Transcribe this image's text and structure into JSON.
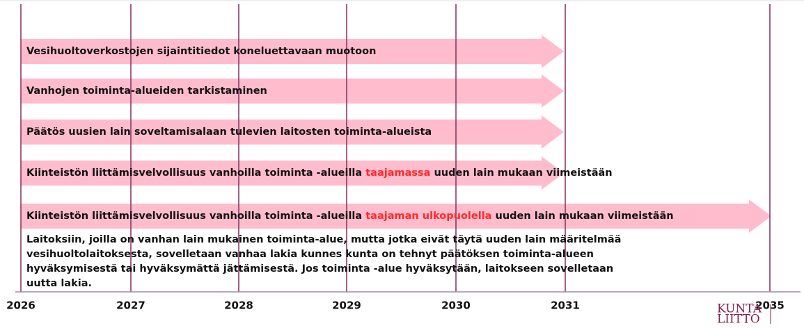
{
  "years": [
    "2026",
    "2027",
    "2028",
    "2029",
    "2030",
    "2031",
    "2035"
  ],
  "arrows": [
    {
      "parts": [
        {
          "text": "Vesihuoltoverkostojen sijaintitiedot koneluettavaan muotoon"
        }
      ]
    },
    {
      "parts": [
        {
          "text": "Vanhojen toiminta-alueiden tarkistaminen"
        }
      ]
    },
    {
      "parts": [
        {
          "text": "Päätös uusien lain soveltamisalaan tulevien laitosten toiminta-alueista"
        }
      ]
    },
    {
      "parts": [
        {
          "text": "Kiinteistön liittämisvelvollisuus vanhoilla toiminta -alueilla "
        },
        {
          "text": "taajamassa",
          "color": "#ff2a2a"
        },
        {
          "text": " uuden lain mukaan viimeistään"
        }
      ]
    },
    {
      "parts": [
        {
          "text": "Kiinteistön liittämisvelvollisuus vanhoilla toiminta -alueilla "
        },
        {
          "text": "taajaman ulkopuolella",
          "color": "#ff2a2a"
        },
        {
          "text": " uuden lain mukaan viimeistään"
        }
      ]
    }
  ],
  "note": [
    "Laitoksiin, joilla on vanhan lain mukainen toiminta-alue, mutta jotka eivät täytä uuden lain määritelmää",
    "vesihuoltolaitoksesta, sovelletaan vanhaa lakia kunnes kunta on tehnyt päätöksen toiminta-alueen",
    "hyväksymisestä tai hyväksymättä jättämisestä. Jos toiminta -alue hyväksytään, laitokseen sovelletaan",
    "uutta lakia."
  ],
  "logo": [
    "KUNTA",
    "LIITTO"
  ]
}
